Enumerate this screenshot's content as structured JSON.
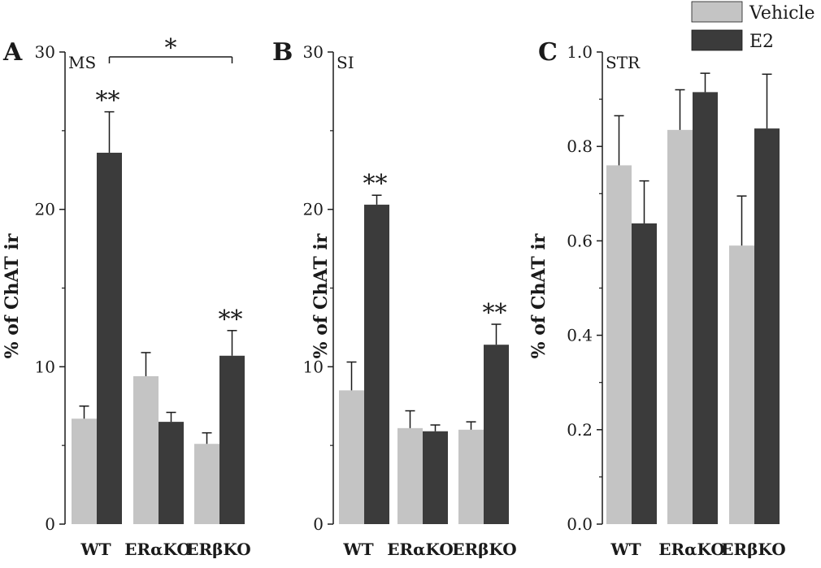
{
  "colors": {
    "vehicle": "#c4c4c4",
    "e2": "#3b3b3b",
    "axis": "#1a1a1a"
  },
  "legend": [
    "Vehicle",
    "E2"
  ],
  "chart_data": [
    {
      "type": "bar",
      "panel": "A",
      "region": "MS",
      "ylabel": "% of ChAT ir",
      "ylim": [
        0,
        30
      ],
      "yticks": [
        0,
        10,
        20,
        30
      ],
      "ytick_labels": [
        "0",
        "10",
        "20",
        "30"
      ],
      "categories": [
        "WT",
        "ERαKO",
        "ERβKO"
      ],
      "series": [
        {
          "name": "Vehicle",
          "values": [
            6.7,
            9.4,
            5.1
          ],
          "errors": [
            0.8,
            1.5,
            0.7
          ]
        },
        {
          "name": "E2",
          "values": [
            23.6,
            6.5,
            10.7
          ],
          "errors": [
            2.6,
            0.6,
            1.6
          ]
        }
      ],
      "annotations": [
        {
          "text": "**",
          "category": 0,
          "series": 1
        },
        {
          "text": "**",
          "category": 2,
          "series": 1
        },
        {
          "text": "*",
          "bracket_from": 0,
          "bracket_to": 2
        }
      ]
    },
    {
      "type": "bar",
      "panel": "B",
      "region": "SI",
      "ylabel": "% of ChAT ir",
      "ylim": [
        0,
        30
      ],
      "yticks": [
        0,
        10,
        20,
        30
      ],
      "ytick_labels": [
        "0",
        "10",
        "20",
        "30"
      ],
      "categories": [
        "WT",
        "ERαKO",
        "ERβKO"
      ],
      "series": [
        {
          "name": "Vehicle",
          "values": [
            8.5,
            6.1,
            6.0
          ],
          "errors": [
            1.8,
            1.1,
            0.5
          ]
        },
        {
          "name": "E2",
          "values": [
            20.3,
            5.9,
            11.4
          ],
          "errors": [
            0.6,
            0.4,
            1.3
          ]
        }
      ],
      "annotations": [
        {
          "text": "**",
          "category": 0,
          "series": 1
        },
        {
          "text": "**",
          "category": 2,
          "series": 1
        }
      ]
    },
    {
      "type": "bar",
      "panel": "C",
      "region": "STR",
      "ylabel": "% of ChAT ir",
      "ylim": [
        0,
        1.0
      ],
      "yticks": [
        0,
        0.2,
        0.4,
        0.6,
        0.8,
        1.0
      ],
      "ytick_labels": [
        "0.0",
        "0.2",
        "0.4",
        "0.6",
        "0.8",
        "1.0"
      ],
      "categories": [
        "WT",
        "ERαKO",
        "ERβKO"
      ],
      "series": [
        {
          "name": "Vehicle",
          "values": [
            0.76,
            0.835,
            0.59
          ],
          "errors": [
            0.105,
            0.085,
            0.105
          ]
        },
        {
          "name": "E2",
          "values": [
            0.637,
            0.915,
            0.838
          ],
          "errors": [
            0.09,
            0.04,
            0.115
          ]
        }
      ],
      "annotations": []
    }
  ]
}
